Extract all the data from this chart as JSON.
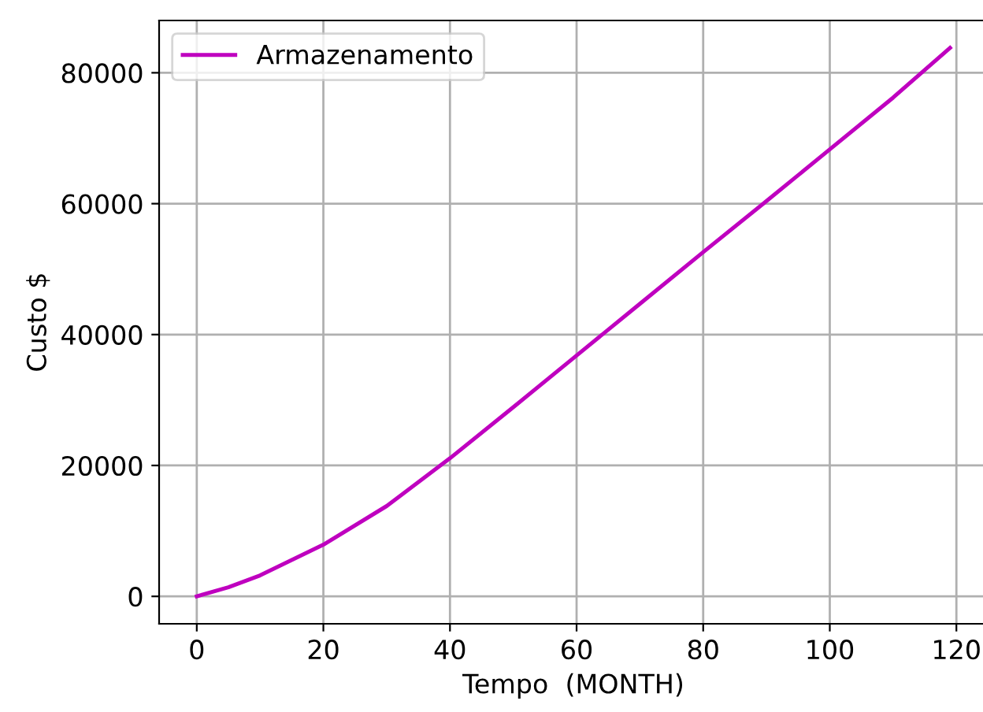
{
  "chart_data": {
    "type": "line",
    "xlabel": "Tempo  (MONTH)",
    "ylabel": "Custo $",
    "x": [
      0,
      5,
      10,
      20,
      30,
      40,
      50,
      60,
      70,
      80,
      90,
      100,
      110,
      119
    ],
    "series": [
      {
        "name": "Armazenamento",
        "color": "#bf00bf",
        "values": [
          0,
          1400,
          3200,
          7900,
          13800,
          21100,
          28900,
          36800,
          44700,
          52600,
          60400,
          68300,
          76200,
          83800
        ]
      }
    ],
    "xlim": [
      -5.95,
      124.95
    ],
    "xticks": [
      0,
      20,
      40,
      60,
      80,
      100,
      120
    ],
    "ylim": [
      -4190,
      87990
    ],
    "yticks": [
      0,
      20000,
      40000,
      60000,
      80000
    ],
    "grid": true,
    "legend": "top left",
    "marker": "none",
    "line_style": "solid"
  }
}
